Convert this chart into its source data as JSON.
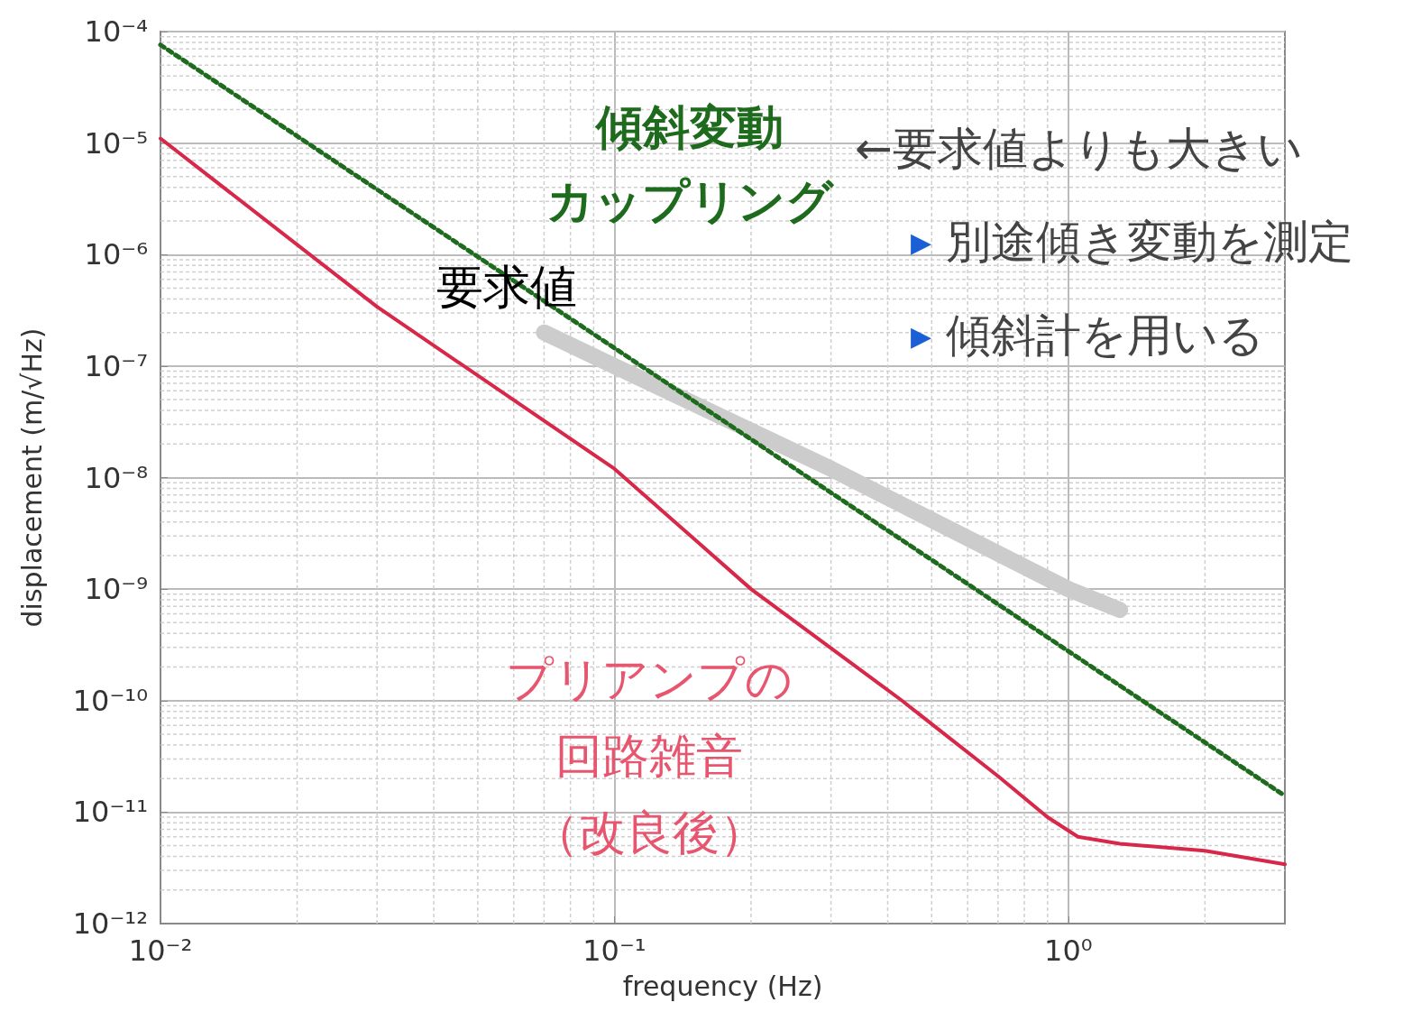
{
  "chart_data": {
    "type": "line",
    "xlabel": "frequency (Hz)",
    "ylabel": "displacement (m/√Hz)",
    "log": "xy",
    "grid": true,
    "marker": "none",
    "xlim": [
      0.01,
      3
    ],
    "ylim": [
      1e-12,
      0.0001
    ],
    "xticks": [
      {
        "value": 0.01,
        "label": "10⁻²"
      },
      {
        "value": 0.1,
        "label": "10⁻¹"
      },
      {
        "value": 1,
        "label": "10⁰"
      }
    ],
    "yticks": [
      {
        "value": 1e-12,
        "label": "10⁻¹²"
      },
      {
        "value": 1e-11,
        "label": "10⁻¹¹"
      },
      {
        "value": 1e-10,
        "label": "10⁻¹⁰"
      },
      {
        "value": 1e-09,
        "label": "10⁻⁹"
      },
      {
        "value": 1e-08,
        "label": "10⁻⁸"
      },
      {
        "value": 1e-07,
        "label": "10⁻⁷"
      },
      {
        "value": 1e-06,
        "label": "10⁻⁶"
      },
      {
        "value": 1e-05,
        "label": "10⁻⁵"
      },
      {
        "value": 0.0001,
        "label": "10⁻⁴"
      }
    ],
    "series": [
      {
        "name": "要求値",
        "color": "#cccccc",
        "line_style": "solid",
        "x": [
          0.07,
          0.1,
          0.3,
          1,
          1.3
        ],
        "values": [
          2e-07,
          1e-07,
          1.2e-08,
          1e-09,
          6.5e-10
        ]
      },
      {
        "name": "傾斜変動カップリング",
        "color": "#1e6b1e",
        "line_style": "dotted",
        "x": [
          0.01,
          3
        ],
        "values": [
          7.6e-05,
          1.4e-11
        ]
      },
      {
        "name": "プリアンプの回路雑音（改良後）",
        "color": "#d8284a",
        "line_style": "solid",
        "x": [
          0.01,
          0.03,
          0.1,
          0.2,
          0.43,
          0.7,
          0.9,
          1.05,
          1.3,
          2,
          3
        ],
        "values": [
          1.1e-05,
          3.4e-07,
          1.2e-08,
          1e-09,
          1e-10,
          2.1e-11,
          9e-12,
          6e-12,
          5.2e-12,
          4.5e-12,
          3.4e-12
        ]
      }
    ],
    "annotations": [
      "←要求値よりも大きい",
      "▶ 別途傾き変動を測定",
      "▶ 傾斜計を用いる"
    ]
  }
}
